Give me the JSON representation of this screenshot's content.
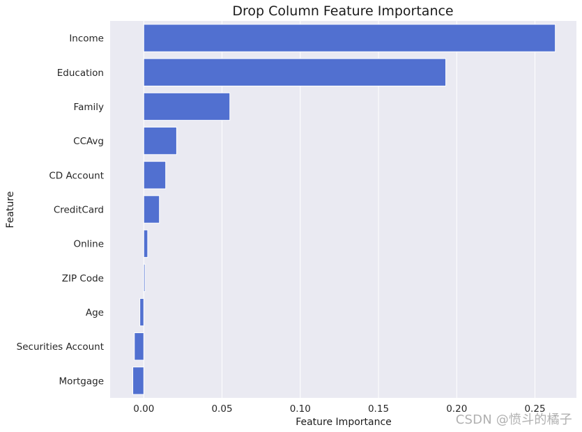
{
  "colors": {
    "bar": "#5170d0",
    "plot_background": "#eaeaf2",
    "grid": "#ffffff",
    "watermark": "#969696"
  },
  "watermark": "CSDN @愤斗的橘子",
  "chart_data": {
    "type": "bar",
    "orientation": "horizontal",
    "title": "Drop Column Feature Importance",
    "xlabel": "Feature Importance",
    "ylabel": "Feature",
    "categories": [
      "Income",
      "Education",
      "Family",
      "CCAvg",
      "CD Account",
      "CreditCard",
      "Online",
      "ZIP Code",
      "Age",
      "Securities Account",
      "Mortgage"
    ],
    "values": [
      0.263,
      0.193,
      0.055,
      0.021,
      0.014,
      0.01,
      0.0025,
      0.0008,
      -0.0025,
      -0.006,
      -0.007
    ],
    "xlim": [
      -0.0215,
      0.2765
    ],
    "xticks": [
      0.0,
      0.05,
      0.1,
      0.15,
      0.2,
      0.25
    ],
    "xtick_labels": [
      "0.00",
      "0.05",
      "0.10",
      "0.15",
      "0.20",
      "0.25"
    ],
    "grid": true
  }
}
